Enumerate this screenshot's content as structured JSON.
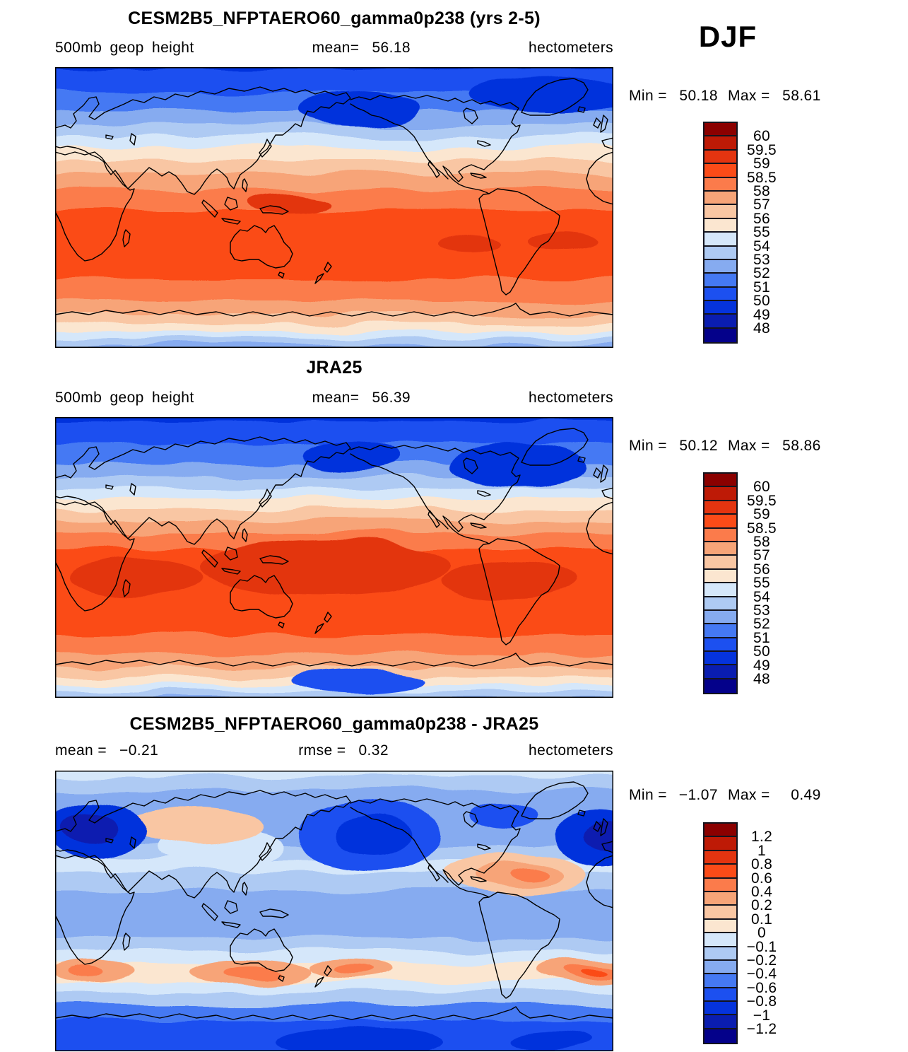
{
  "season": "DJF",
  "panels": [
    {
      "title": "CESM2B5_NFPTAERO60_gamma0p238 (yrs 2-5)",
      "field": "500mb geop height",
      "mean_label": "mean=",
      "mean": "56.18",
      "units": "hectometers",
      "min_label": "Min  =",
      "min": "50.18",
      "max_label": "Max  =",
      "max": "58.61",
      "colorbar": {
        "labels": [
          "60",
          "59.5",
          "59",
          "58.5",
          "58",
          "57",
          "56",
          "55",
          "54",
          "53",
          "52",
          "51",
          "50",
          "49",
          "48"
        ],
        "colors": [
          "#8B0000",
          "#BE1A06",
          "#E33410",
          "#FB4B18",
          "#FB7B4B",
          "#F7A478",
          "#F9C6A3",
          "#FBE6D0",
          "#D5E7FA",
          "#AECAF3",
          "#86ABF0",
          "#4579F3",
          "#1C50F0",
          "#0533DC",
          "#0A1DB0",
          "#04018A"
        ]
      }
    },
    {
      "title": "JRA25",
      "field": "500mb geop height",
      "mean_label": "mean=",
      "mean": "56.39",
      "units": "hectometers",
      "min_label": "Min  =",
      "min": "50.12",
      "max_label": "Max  =",
      "max": "58.86",
      "colorbar": {
        "labels": [
          "60",
          "59.5",
          "59",
          "58.5",
          "58",
          "57",
          "56",
          "55",
          "54",
          "53",
          "52",
          "51",
          "50",
          "49",
          "48"
        ],
        "colors": [
          "#8B0000",
          "#BE1A06",
          "#E33410",
          "#FB4B18",
          "#FB7B4B",
          "#F7A478",
          "#F9C6A3",
          "#FBE6D0",
          "#D5E7FA",
          "#AECAF3",
          "#86ABF0",
          "#4579F3",
          "#1C50F0",
          "#0533DC",
          "#0A1DB0",
          "#04018A"
        ]
      }
    },
    {
      "title": "CESM2B5_NFPTAERO60_gamma0p238 - JRA25",
      "mean_label": "mean =",
      "mean": "−0.21",
      "rmse_label": "rmse =",
      "rmse": "0.32",
      "units": "hectometers",
      "min_label": "Min  =",
      "min": "−1.07",
      "max_label": "Max  =",
      "max": "0.49",
      "colorbar": {
        "labels": [
          "1.2",
          "1",
          "0.8",
          "0.6",
          "0.4",
          "0.2",
          "0.1",
          "0",
          "−0.1",
          "−0.2",
          "−0.4",
          "−0.6",
          "−0.8",
          "−1",
          "−1.2"
        ],
        "colors": [
          "#8B0000",
          "#BE1A06",
          "#E33410",
          "#FB4B18",
          "#FB7B4B",
          "#F7A478",
          "#F9C6A3",
          "#FBE6D0",
          "#D5E7FA",
          "#AECAF3",
          "#86ABF0",
          "#4579F3",
          "#1C50F0",
          "#0533DC",
          "#0A1DB0",
          "#04018A"
        ]
      }
    }
  ],
  "chart_data": [
    {
      "type": "heatmap",
      "subtype": "filled-contour global map, Pacific-centered equirectangular",
      "title": "CESM2B5_NFPTAERO60_gamma0p238 (yrs 2-5)",
      "variable": "500mb geop height",
      "units": "hectometers",
      "season": "DJF",
      "mean": 56.18,
      "min": 50.18,
      "max": 58.61,
      "contour_levels": [
        48,
        49,
        50,
        51,
        52,
        53,
        54,
        55,
        56,
        57,
        58,
        58.5,
        59,
        59.5,
        60
      ],
      "palette_top_to_bottom": [
        "#8B0000",
        "#BE1A06",
        "#E33410",
        "#FB4B18",
        "#FB7B4B",
        "#F7A478",
        "#F9C6A3",
        "#FBE6D0",
        "#D5E7FA",
        "#AECAF3",
        "#86ABF0",
        "#4579F3",
        "#1C50F0",
        "#0533DC",
        "#0A1DB0",
        "#04018A"
      ],
      "legend_position": "right",
      "pattern": "zonal bands: low (blue ~50-53) at poles, high (orange ~58-58.6) in tropics"
    },
    {
      "type": "heatmap",
      "subtype": "filled-contour global map, Pacific-centered equirectangular",
      "title": "JRA25",
      "variable": "500mb geop height",
      "units": "hectometers",
      "season": "DJF",
      "mean": 56.39,
      "min": 50.12,
      "max": 58.86,
      "contour_levels": [
        48,
        49,
        50,
        51,
        52,
        53,
        54,
        55,
        56,
        57,
        58,
        58.5,
        59,
        59.5,
        60
      ],
      "palette_top_to_bottom": [
        "#8B0000",
        "#BE1A06",
        "#E33410",
        "#FB4B18",
        "#FB7B4B",
        "#F7A478",
        "#F9C6A3",
        "#FBE6D0",
        "#D5E7FA",
        "#AECAF3",
        "#86ABF0",
        "#4579F3",
        "#1C50F0",
        "#0533DC",
        "#0A1DB0",
        "#04018A"
      ],
      "legend_position": "right",
      "pattern": "zonal bands with broader/deeper tropical maximum (58.5-59) than model"
    },
    {
      "type": "heatmap",
      "subtype": "filled-contour global difference map, Pacific-centered equirectangular",
      "title": "CESM2B5_NFPTAERO60_gamma0p238 - JRA25",
      "units": "hectometers",
      "season": "DJF",
      "mean": -0.21,
      "rmse": 0.32,
      "min": -1.07,
      "max": 0.49,
      "contour_levels": [
        -1.2,
        -1,
        -0.8,
        -0.6,
        -0.4,
        -0.2,
        -0.1,
        0,
        0.1,
        0.2,
        0.4,
        0.6,
        0.8,
        1,
        1.2
      ],
      "palette_top_to_bottom": [
        "#8B0000",
        "#BE1A06",
        "#E33410",
        "#FB4B18",
        "#FB7B4B",
        "#F7A478",
        "#F9C6A3",
        "#FBE6D0",
        "#D5E7FA",
        "#AECAF3",
        "#86ABF0",
        "#4579F3",
        "#1C50F0",
        "#0533DC",
        "#0A1DB0",
        "#04018A"
      ],
      "legend_position": "right",
      "pattern": "mostly negative (blue); strong negative centers over N Atlantic/Scandinavia, N Pacific and Antarctic; weak positive (orange) over Siberia, E North America and S mid-latitude ocean"
    }
  ]
}
